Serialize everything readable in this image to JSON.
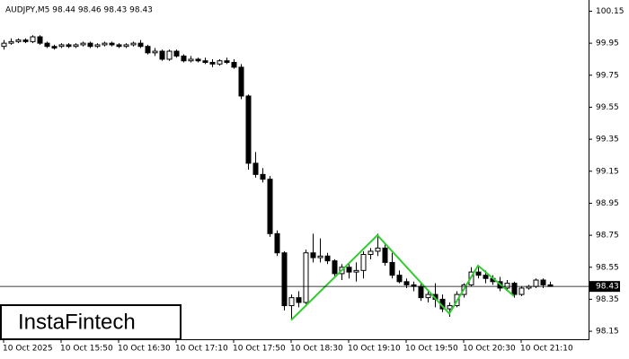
{
  "chart_data": {
    "type": "candlestick",
    "title": "AUDJPY,M5  98.44 98.46 98.43 98.43",
    "categories": [
      "10 Oct 2025",
      null,
      null,
      null,
      null,
      null,
      null,
      null,
      "10 Oct 15:50",
      null,
      null,
      null,
      null,
      null,
      null,
      null,
      "10 Oct 16:30",
      null,
      null,
      null,
      null,
      null,
      null,
      null,
      "10 Oct 17:10",
      null,
      null,
      null,
      null,
      null,
      null,
      null,
      "10 Oct 17:50",
      null,
      null,
      null,
      null,
      null,
      null,
      null,
      "10 Oct 18:30",
      null,
      null,
      null,
      null,
      null,
      null,
      null,
      "10 Oct 19:10",
      null,
      null,
      null,
      null,
      null,
      null,
      null,
      "10 Oct 19:50",
      null,
      null,
      null,
      null,
      null,
      null,
      null,
      "10 Oct 20:30",
      null,
      null,
      null,
      null,
      null,
      null,
      null,
      "10 Oct 21:10",
      null,
      null,
      null,
      null
    ],
    "open": [
      99.93,
      99.95,
      99.96,
      99.97,
      99.96,
      99.99,
      99.95,
      99.93,
      99.93,
      99.94,
      99.93,
      99.94,
      99.95,
      99.93,
      99.94,
      99.95,
      99.94,
      99.93,
      99.94,
      99.95,
      99.93,
      99.89,
      99.9,
      99.85,
      99.9,
      99.87,
      99.84,
      99.85,
      99.84,
      99.83,
      99.82,
      99.84,
      99.83,
      99.8,
      99.62,
      99.2,
      99.13,
      99.1,
      98.76,
      98.64,
      98.31,
      98.36,
      98.33,
      98.64,
      98.61,
      98.62,
      98.59,
      98.51,
      98.55,
      98.52,
      98.53,
      98.63,
      98.65,
      98.67,
      98.58,
      98.5,
      98.46,
      98.44,
      98.43,
      98.36,
      98.38,
      98.35,
      98.29,
      98.31,
      98.38,
      98.44,
      98.52,
      98.5,
      98.48,
      98.46,
      98.42,
      98.45,
      98.38,
      98.42,
      98.43,
      98.47,
      98.44
    ],
    "high": [
      99.97,
      99.98,
      99.98,
      99.98,
      100.0,
      100.0,
      99.96,
      99.94,
      99.95,
      99.95,
      99.95,
      99.96,
      99.96,
      99.95,
      99.96,
      99.96,
      99.95,
      99.95,
      99.96,
      99.97,
      99.94,
      99.92,
      99.91,
      99.91,
      99.91,
      99.88,
      99.87,
      99.86,
      99.86,
      99.85,
      99.85,
      99.86,
      99.85,
      99.82,
      99.63,
      99.27,
      99.17,
      99.12,
      98.78,
      98.65,
      98.38,
      98.4,
      98.66,
      98.76,
      98.73,
      98.64,
      98.6,
      98.57,
      98.57,
      98.58,
      98.65,
      98.67,
      98.76,
      98.7,
      98.64,
      98.53,
      98.48,
      98.46,
      98.45,
      98.4,
      98.45,
      98.38,
      98.33,
      98.4,
      98.45,
      98.55,
      98.56,
      98.53,
      98.5,
      98.49,
      98.47,
      98.46,
      98.43,
      98.44,
      98.48,
      98.48,
      98.46
    ],
    "low": [
      99.91,
      99.94,
      99.95,
      99.95,
      99.95,
      99.94,
      99.92,
      99.91,
      99.92,
      99.92,
      99.92,
      99.93,
      99.92,
      99.92,
      99.93,
      99.93,
      99.92,
      99.92,
      99.93,
      99.92,
      99.88,
      99.87,
      99.84,
      99.84,
      99.86,
      99.83,
      99.83,
      99.83,
      99.82,
      99.8,
      99.81,
      99.82,
      99.79,
      99.6,
      99.16,
      99.11,
      99.08,
      98.74,
      98.62,
      98.28,
      98.22,
      98.3,
      98.32,
      98.58,
      98.58,
      98.57,
      98.49,
      98.47,
      98.48,
      98.46,
      98.48,
      98.6,
      98.62,
      98.56,
      98.48,
      98.45,
      98.42,
      98.4,
      98.34,
      98.33,
      98.3,
      98.27,
      98.24,
      98.3,
      98.36,
      98.43,
      98.48,
      98.45,
      98.44,
      98.4,
      98.4,
      98.36,
      98.37,
      98.41,
      98.42,
      98.42,
      98.43
    ],
    "close": [
      99.95,
      99.96,
      99.97,
      99.96,
      99.99,
      99.95,
      99.93,
      99.92,
      99.94,
      99.93,
      99.94,
      99.95,
      99.93,
      99.94,
      99.95,
      99.94,
      99.93,
      99.94,
      99.95,
      99.93,
      99.89,
      99.9,
      99.85,
      99.9,
      99.87,
      99.84,
      99.85,
      99.84,
      99.83,
      99.82,
      99.84,
      99.83,
      99.8,
      99.62,
      99.2,
      99.13,
      99.1,
      98.76,
      98.64,
      98.31,
      98.36,
      98.33,
      98.64,
      98.61,
      98.62,
      98.59,
      98.51,
      98.55,
      98.52,
      98.53,
      98.63,
      98.65,
      98.67,
      98.58,
      98.5,
      98.46,
      98.44,
      98.43,
      98.36,
      98.38,
      98.35,
      98.29,
      98.31,
      98.38,
      98.44,
      98.52,
      98.5,
      98.48,
      98.46,
      98.42,
      98.45,
      98.38,
      98.42,
      98.43,
      98.47,
      98.44,
      98.43
    ],
    "ylim": [
      98.1,
      100.22
    ],
    "yticks": [
      100.15,
      99.95,
      99.75,
      99.55,
      99.35,
      99.15,
      98.95,
      98.75,
      98.55,
      98.35,
      98.15
    ],
    "current_price": 98.43,
    "pattern": {
      "color": "#33cc33",
      "x": [
        40,
        52,
        62,
        66,
        71
      ],
      "values": [
        98.22,
        98.75,
        98.26,
        98.56,
        98.37
      ]
    },
    "logo": "InstaFintech"
  }
}
